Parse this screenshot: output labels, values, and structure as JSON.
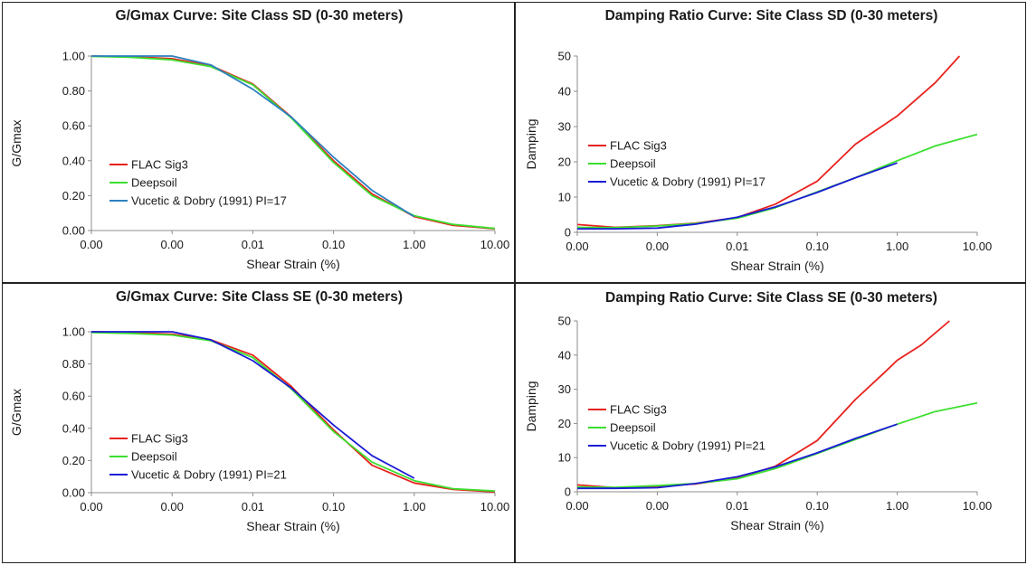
{
  "chart_data": [
    {
      "type": "line",
      "title": "G/Gmax Curve: Site Class SD (0-30 meters)",
      "xlabel": "Shear Strain (%)",
      "ylabel": "G/Gmax",
      "x_scale": "log",
      "xlim": [
        0.0001,
        10
      ],
      "ylim": [
        0,
        1
      ],
      "x_tick_values": [
        0.0001,
        0.001,
        0.01,
        0.1,
        1,
        10
      ],
      "x_tick_labels": [
        "0.00",
        "0.00",
        "0.01",
        "0.10",
        "1.00",
        "10.00"
      ],
      "y_tick_values": [
        0,
        0.2,
        0.4,
        0.6,
        0.8,
        1.0
      ],
      "y_tick_labels": [
        "0.00",
        "0.20",
        "0.40",
        "0.60",
        "0.80",
        "1.00"
      ],
      "grid": false,
      "legend_position": "bottom-left",
      "series": [
        {
          "name": "FLAC Sig3",
          "color": "#e8211c",
          "x": [
            0.0001,
            0.0003,
            0.001,
            0.003,
            0.01,
            0.03,
            0.1,
            0.3,
            1,
            3,
            10
          ],
          "y": [
            1.0,
            0.996,
            0.985,
            0.945,
            0.84,
            0.65,
            0.4,
            0.21,
            0.08,
            0.03,
            0.01
          ]
        },
        {
          "name": "Deepsoil",
          "color": "#3adf2f",
          "x": [
            0.0001,
            0.0003,
            0.001,
            0.003,
            0.01,
            0.03,
            0.1,
            0.3,
            1,
            3,
            10
          ],
          "y": [
            0.998,
            0.993,
            0.978,
            0.94,
            0.835,
            0.645,
            0.39,
            0.2,
            0.085,
            0.035,
            0.012
          ]
        },
        {
          "name": "Vucetic & Dobry (1991) PI=17",
          "color": "#2d7fbf",
          "x": [
            0.0001,
            0.001,
            0.003,
            0.01,
            0.03,
            0.1,
            0.3,
            1
          ],
          "y": [
            1.0,
            1.0,
            0.95,
            0.81,
            0.65,
            0.42,
            0.23,
            0.08
          ]
        }
      ]
    },
    {
      "type": "line",
      "title": "Damping Ratio Curve: Site Class SD (0-30 meters)",
      "xlabel": "Shear Strain (%)",
      "ylabel": "Damping",
      "x_scale": "log",
      "xlim": [
        0.0001,
        10
      ],
      "ylim": [
        0,
        50
      ],
      "x_tick_values": [
        0.0001,
        0.001,
        0.01,
        0.1,
        1,
        10
      ],
      "x_tick_labels": [
        "0.00",
        "0.00",
        "0.01",
        "0.10",
        "1.00",
        "10.00"
      ],
      "y_tick_values": [
        0,
        10,
        20,
        30,
        40,
        50
      ],
      "y_tick_labels": [
        "0",
        "10",
        "20",
        "30",
        "40",
        "50"
      ],
      "grid": false,
      "legend_position": "left",
      "series": [
        {
          "name": "FLAC Sig3",
          "color": "#e8211c",
          "x": [
            0.0001,
            0.0003,
            0.001,
            0.003,
            0.01,
            0.03,
            0.1,
            0.3,
            1,
            3,
            6
          ],
          "y": [
            2.2,
            1.4,
            1.9,
            2.6,
            4.2,
            8.0,
            14.5,
            25.0,
            33.0,
            42.5,
            50.0
          ]
        },
        {
          "name": "Deepsoil",
          "color": "#3adf2f",
          "x": [
            0.0001,
            0.0003,
            0.001,
            0.003,
            0.01,
            0.03,
            0.1,
            0.3,
            1,
            3,
            10
          ],
          "y": [
            1.4,
            1.3,
            1.8,
            2.5,
            4.0,
            7.0,
            11.5,
            15.5,
            20.3,
            24.5,
            27.8
          ]
        },
        {
          "name": "Vucetic & Dobry (1991) PI=17",
          "color": "#1b1bd6",
          "x": [
            0.0001,
            0.0003,
            0.001,
            0.003,
            0.01,
            0.03,
            0.1,
            0.3,
            1
          ],
          "y": [
            1.0,
            1.0,
            1.2,
            2.3,
            4.3,
            7.2,
            11.3,
            15.5,
            19.7
          ]
        }
      ]
    },
    {
      "type": "line",
      "title": "G/Gmax Curve: Site Class SE (0-30 meters)",
      "xlabel": "Shear Strain (%)",
      "ylabel": "G/Gmax",
      "x_scale": "log",
      "xlim": [
        0.0001,
        10
      ],
      "ylim": [
        0,
        1
      ],
      "x_tick_values": [
        0.0001,
        0.001,
        0.01,
        0.1,
        1,
        10
      ],
      "x_tick_labels": [
        "0.00",
        "0.00",
        "0.01",
        "0.10",
        "1.00",
        "10.00"
      ],
      "y_tick_values": [
        0,
        0.2,
        0.4,
        0.6,
        0.8,
        1.0
      ],
      "y_tick_labels": [
        "0.00",
        "0.20",
        "0.40",
        "0.60",
        "0.80",
        "1.00"
      ],
      "grid": false,
      "legend_position": "bottom-left",
      "series": [
        {
          "name": "FLAC Sig3",
          "color": "#e8211c",
          "x": [
            0.0001,
            0.0003,
            0.001,
            0.003,
            0.01,
            0.03,
            0.1,
            0.3,
            1,
            3,
            10
          ],
          "y": [
            1.0,
            0.995,
            0.985,
            0.95,
            0.855,
            0.66,
            0.39,
            0.17,
            0.06,
            0.02,
            0.005
          ]
        },
        {
          "name": "Deepsoil",
          "color": "#3adf2f",
          "x": [
            0.0001,
            0.0003,
            0.001,
            0.003,
            0.01,
            0.03,
            0.1,
            0.3,
            1,
            3,
            10
          ],
          "y": [
            0.995,
            0.99,
            0.98,
            0.945,
            0.84,
            0.645,
            0.38,
            0.19,
            0.075,
            0.025,
            0.01
          ]
        },
        {
          "name": "Vucetic & Dobry (1991) PI=21",
          "color": "#1b1bd6",
          "x": [
            0.0001,
            0.001,
            0.003,
            0.01,
            0.03,
            0.1,
            0.3,
            1
          ],
          "y": [
            1.0,
            1.0,
            0.95,
            0.82,
            0.65,
            0.42,
            0.23,
            0.09
          ]
        }
      ]
    },
    {
      "type": "line",
      "title": "Damping Ratio Curve:  Site Class SE (0-30 meters)",
      "xlabel": "Shear Strain (%)",
      "ylabel": "Damping",
      "x_scale": "log",
      "xlim": [
        0.0001,
        10
      ],
      "ylim": [
        0,
        50
      ],
      "x_tick_values": [
        0.0001,
        0.001,
        0.01,
        0.1,
        1,
        10
      ],
      "x_tick_labels": [
        "0.00",
        "0.00",
        "0.01",
        "0.10",
        "1.00",
        "10.00"
      ],
      "y_tick_values": [
        0,
        10,
        20,
        30,
        40,
        50
      ],
      "y_tick_labels": [
        "0",
        "10",
        "20",
        "30",
        "40",
        "50"
      ],
      "grid": false,
      "legend_position": "left",
      "series": [
        {
          "name": "FLAC Sig3",
          "color": "#e8211c",
          "x": [
            0.0001,
            0.0003,
            0.001,
            0.003,
            0.01,
            0.03,
            0.1,
            0.3,
            0.7,
            1,
            2,
            4.5
          ],
          "y": [
            2.0,
            1.2,
            1.6,
            2.3,
            4.0,
            7.5,
            15.0,
            27.0,
            35.0,
            38.5,
            43.0,
            50.0
          ]
        },
        {
          "name": "Deepsoil",
          "color": "#3adf2f",
          "x": [
            0.0001,
            0.0003,
            0.001,
            0.003,
            0.01,
            0.03,
            0.1,
            0.3,
            1,
            3,
            10
          ],
          "y": [
            1.4,
            1.3,
            1.8,
            2.4,
            3.8,
            6.8,
            11.2,
            15.3,
            19.8,
            23.5,
            26.0
          ]
        },
        {
          "name": "Vucetic & Dobry (1991) PI=21",
          "color": "#1b1bd6",
          "x": [
            0.0001,
            0.0003,
            0.001,
            0.003,
            0.01,
            0.03,
            0.1,
            0.3,
            1
          ],
          "y": [
            1.0,
            1.0,
            1.2,
            2.4,
            4.4,
            7.3,
            11.4,
            15.6,
            19.8
          ]
        }
      ]
    }
  ]
}
